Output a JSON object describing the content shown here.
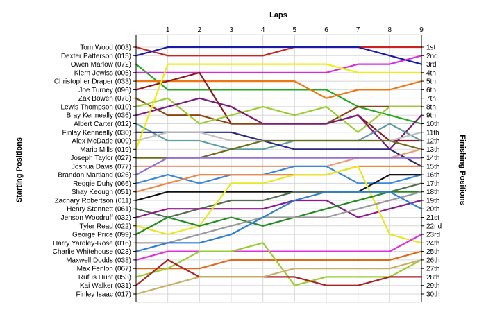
{
  "chart_data": {
    "type": "line",
    "title": "",
    "xlabel": "Laps",
    "ylabel_left": "Starting Positions",
    "ylabel_right": "Finishing Positions",
    "x": [
      0,
      1,
      2,
      3,
      4,
      5,
      6,
      7,
      8,
      9
    ],
    "x_tick_labels": [
      "1",
      "2",
      "3",
      "4",
      "5",
      "6",
      "7",
      "8",
      "9"
    ],
    "ylim": [
      1,
      30
    ],
    "grid": true,
    "left_labels": [
      "Tom Wood (003)",
      "Dexter Patterson (015)",
      "Owen Marlow (072)",
      "Kiern Jewiss (005)",
      "Christopher Draper (033)",
      "Joe Turney (096)",
      "Zak Bowen (078)",
      "Lewis Thompson (010)",
      "Bray Kenneally (036)",
      "Albert Carter (012)",
      "Finlay Kenneally (030)",
      "Alex McDade (009)",
      "Mario Mills (019)",
      "Joseph Taylor (027)",
      "Joshua Davis (077)",
      "Brandon Martland (026)",
      "Reggie Duhy (066)",
      "Shay Keough (051)",
      "Zachary Robertson (011)",
      "Henry Stennett (061)",
      "Jenson Woodruff (032)",
      "Tyler Read (022)",
      "George Price (099)",
      "Harry Yardley-Rose (016)",
      "Charlie Whitehouse (023)",
      "Maxwell Dodds (038)",
      "Max Fenlon (067)",
      "Rufus Hunt (053)",
      "Kai Walker (031)",
      "Finley Isaac (017)"
    ],
    "right_labels": [
      "1st",
      "2nd",
      "3rd",
      "4th",
      "5th",
      "6th",
      "7th",
      "8th",
      "9th",
      "10th",
      "11th",
      "12th",
      "13th",
      "14th",
      "15th",
      "16th",
      "17th",
      "18th",
      "19th",
      "20th",
      "21st",
      "22nd",
      "23rd",
      "24th",
      "25th",
      "26th",
      "27th",
      "28th",
      "29th",
      "30th"
    ],
    "series": [
      {
        "color": "#cc2222",
        "values": [
          1,
          2,
          2,
          2,
          2,
          1,
          1,
          1,
          1,
          1
        ]
      },
      {
        "color": "#1a1aa8",
        "values": [
          2,
          1,
          1,
          1,
          1,
          1,
          1,
          1,
          2,
          3
        ]
      },
      {
        "color": "#22aa22",
        "values": [
          3,
          6,
          6,
          6,
          6,
          6,
          6,
          8,
          9,
          10
        ]
      },
      {
        "color": "#d92bd9",
        "values": [
          4,
          4,
          4,
          4,
          4,
          4,
          4,
          3,
          3,
          2
        ]
      },
      {
        "color": "#ee7711",
        "values": [
          5,
          5,
          5,
          5,
          5,
          5,
          7,
          6,
          6,
          5
        ]
      },
      {
        "color": "#8b1a1a",
        "values": [
          6,
          5,
          4,
          10,
          10,
          10,
          10,
          9,
          12,
          12
        ]
      },
      {
        "color": "#8b4513",
        "values": [
          7,
          9,
          9,
          10,
          10,
          10,
          10,
          8,
          8,
          8
        ]
      },
      {
        "color": "#9acd32",
        "values": [
          8,
          7,
          10,
          9,
          8,
          9,
          8,
          11,
          8,
          8
        ]
      },
      {
        "color": "#7b1a7b",
        "values": [
          9,
          8,
          7,
          8,
          10,
          10,
          10,
          9,
          13,
          9
        ]
      },
      {
        "color": "#5f9ea0",
        "values": [
          10,
          12,
          12,
          13,
          13,
          12,
          12,
          12,
          10,
          12
        ]
      },
      {
        "color": "#2a2a80",
        "values": [
          11,
          11,
          11,
          11,
          12,
          13,
          13,
          13,
          13,
          15
        ]
      },
      {
        "color": "#c0c0c0",
        "values": [
          12,
          11,
          11,
          12,
          12,
          12,
          12,
          12,
          12,
          11
        ]
      },
      {
        "color": "#eeee11",
        "values": [
          13,
          3,
          3,
          3,
          3,
          3,
          3,
          4,
          4,
          4
        ]
      },
      {
        "color": "#6b6b1a",
        "values": [
          14,
          14,
          14,
          13,
          12,
          12,
          12,
          12,
          12,
          13
        ]
      },
      {
        "color": "#e9a07a",
        "values": [
          15,
          15,
          15,
          15,
          15,
          15,
          15,
          14,
          14,
          13
        ]
      },
      {
        "color": "#9370db",
        "values": [
          16,
          14,
          14,
          14,
          14,
          14,
          14,
          14,
          14,
          14
        ]
      },
      {
        "color": "#3a88d8",
        "values": [
          17,
          16,
          17,
          16,
          16,
          15,
          15,
          17,
          17,
          16
        ]
      },
      {
        "color": "#ee8844",
        "values": [
          18,
          17,
          16,
          16,
          16,
          16,
          16,
          15,
          15,
          15
        ]
      },
      {
        "color": "#111111",
        "values": [
          19,
          18,
          18,
          18,
          18,
          18,
          18,
          18,
          16,
          16
        ]
      },
      {
        "color": "#4f6f4f",
        "values": [
          20,
          21,
          20,
          19,
          19,
          18,
          18,
          18,
          18,
          17
        ]
      },
      {
        "color": "#8b1a8b",
        "values": [
          21,
          20,
          20,
          20,
          20,
          19,
          19,
          21,
          20,
          19
        ]
      },
      {
        "color": "#e8e822",
        "values": [
          22,
          23,
          22,
          17,
          17,
          16,
          16,
          15,
          23,
          24
        ]
      },
      {
        "color": "#228b22",
        "values": [
          23,
          21,
          22,
          21,
          22,
          21,
          20,
          19,
          18,
          18
        ]
      },
      {
        "color": "#999999",
        "values": [
          24,
          24,
          23,
          22,
          21,
          21,
          21,
          20,
          19,
          18
        ]
      },
      {
        "color": "#2f7fd0",
        "values": [
          25,
          24,
          24,
          23,
          21,
          19,
          18,
          18,
          18,
          20
        ]
      },
      {
        "color": "#dd33dd",
        "values": [
          26,
          25,
          25,
          25,
          25,
          25,
          25,
          25,
          25,
          23
        ]
      },
      {
        "color": "#e06a1a",
        "values": [
          27,
          27,
          27,
          26,
          26,
          26,
          26,
          26,
          26,
          25
        ]
      },
      {
        "color": "#9acd32",
        "values": [
          28,
          27,
          25,
          25,
          24,
          29,
          28,
          28,
          28,
          26
        ]
      },
      {
        "color": "#aa2222",
        "values": [
          29,
          26,
          28,
          28,
          28,
          28,
          29,
          29,
          28,
          28
        ]
      },
      {
        "color": "#c9b064",
        "values": [
          30,
          29,
          28,
          28,
          28,
          27,
          27,
          27,
          27,
          26
        ]
      }
    ]
  }
}
